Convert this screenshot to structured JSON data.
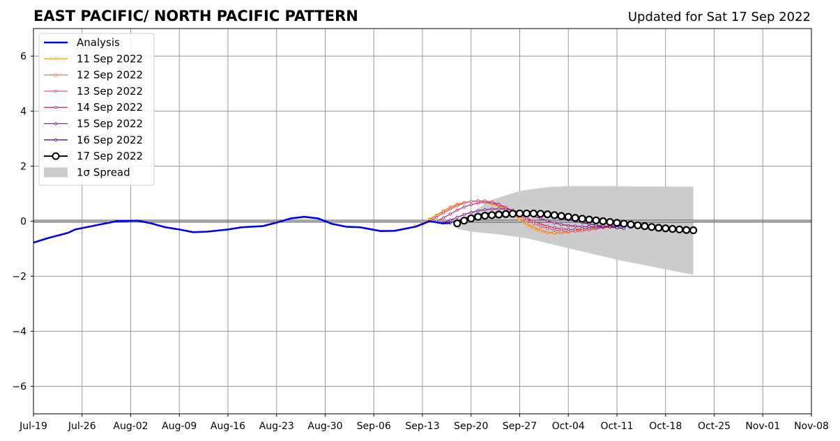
{
  "chart_data": {
    "type": "line",
    "title": "EAST PACIFIC/ NORTH PACIFIC PATTERN",
    "subtitle": "Updated for Sat 17 Sep 2022",
    "xlabel": "",
    "ylabel": "",
    "x_ticks": [
      "Jul-19",
      "Jul-26",
      "Aug-02",
      "Aug-09",
      "Aug-16",
      "Aug-23",
      "Aug-30",
      "Sep-06",
      "Sep-13",
      "Sep-20",
      "Sep-27",
      "Oct-04",
      "Oct-11",
      "Oct-18",
      "Oct-25",
      "Nov-01",
      "Nov-08"
    ],
    "xlim": [
      "2022-07-19",
      "2022-11-08"
    ],
    "ylim": [
      -7,
      7
    ],
    "y_ticks": [
      6,
      4,
      2,
      0,
      -2,
      -4,
      -6
    ],
    "y_tick_labels": [
      "6",
      "4",
      "2",
      "0",
      "−2",
      "−4",
      "−6"
    ],
    "grid": true,
    "legend_position": "top-left",
    "analysis": {
      "name": "Analysis",
      "color": "#0000e6",
      "points": [
        [
          "2022-07-19",
          -0.78
        ],
        [
          "2022-07-21",
          -0.62
        ],
        [
          "2022-07-24",
          -0.42
        ],
        [
          "2022-07-25",
          -0.3
        ],
        [
          "2022-07-28",
          -0.15
        ],
        [
          "2022-07-31",
          0.0
        ],
        [
          "2022-08-03",
          0.02
        ],
        [
          "2022-08-05",
          -0.08
        ],
        [
          "2022-08-07",
          -0.22
        ],
        [
          "2022-08-09",
          -0.3
        ],
        [
          "2022-08-11",
          -0.4
        ],
        [
          "2022-08-13",
          -0.38
        ],
        [
          "2022-08-16",
          -0.3
        ],
        [
          "2022-08-18",
          -0.22
        ],
        [
          "2022-08-21",
          -0.18
        ],
        [
          "2022-08-23",
          -0.05
        ],
        [
          "2022-08-25",
          0.1
        ],
        [
          "2022-08-27",
          0.16
        ],
        [
          "2022-08-29",
          0.1
        ],
        [
          "2022-08-31",
          -0.1
        ],
        [
          "2022-09-02",
          -0.2
        ],
        [
          "2022-09-04",
          -0.22
        ],
        [
          "2022-09-07",
          -0.36
        ],
        [
          "2022-09-09",
          -0.35
        ],
        [
          "2022-09-12",
          -0.2
        ],
        [
          "2022-09-14",
          0.0
        ],
        [
          "2022-09-16",
          -0.08
        ],
        [
          "2022-09-17",
          -0.06
        ]
      ]
    },
    "series": [
      {
        "name": "11 Sep 2022",
        "color": "#f5a623",
        "start": "2022-09-12",
        "values": [
          -0.18,
          -0.08,
          0.08,
          0.22,
          0.38,
          0.52,
          0.62,
          0.68,
          0.72,
          0.72,
          0.7,
          0.62,
          0.52,
          0.42,
          0.25,
          0.05,
          -0.15,
          -0.28,
          -0.38,
          -0.42,
          -0.44,
          -0.43,
          -0.4,
          -0.35,
          -0.3,
          -0.25,
          -0.2,
          -0.18,
          -0.16,
          -0.14,
          -0.12
        ]
      },
      {
        "name": "12 Sep 2022",
        "color": "#f07d33",
        "start": "2022-09-13",
        "values": [
          -0.1,
          0.05,
          0.2,
          0.36,
          0.5,
          0.6,
          0.68,
          0.72,
          0.74,
          0.72,
          0.66,
          0.56,
          0.44,
          0.28,
          0.1,
          -0.08,
          -0.22,
          -0.32,
          -0.4,
          -0.42,
          -0.42,
          -0.4,
          -0.36,
          -0.3,
          -0.25,
          -0.22,
          -0.2,
          -0.18,
          -0.16,
          -0.14
        ]
      },
      {
        "name": "13 Sep 2022",
        "color": "#dc5a6e",
        "start": "2022-09-14",
        "values": [
          0.0,
          0.14,
          0.3,
          0.44,
          0.56,
          0.66,
          0.72,
          0.74,
          0.74,
          0.7,
          0.62,
          0.5,
          0.36,
          0.2,
          0.05,
          -0.08,
          -0.18,
          -0.26,
          -0.32,
          -0.36,
          -0.38,
          -0.37,
          -0.35,
          -0.32,
          -0.28,
          -0.24,
          -0.22,
          -0.2,
          -0.18
        ]
      },
      {
        "name": "14 Sep 2022",
        "color": "#b4387a",
        "start": "2022-09-15",
        "values": [
          0.0,
          0.12,
          0.26,
          0.4,
          0.52,
          0.6,
          0.66,
          0.68,
          0.66,
          0.6,
          0.5,
          0.38,
          0.26,
          0.12,
          0.0,
          -0.1,
          -0.18,
          -0.24,
          -0.28,
          -0.3,
          -0.3,
          -0.28,
          -0.26,
          -0.24,
          -0.22,
          -0.2,
          -0.18,
          -0.16
        ]
      },
      {
        "name": "15 Sep 2022",
        "color": "#8a1f8c",
        "start": "2022-09-16",
        "values": [
          -0.06,
          0.04,
          0.14,
          0.24,
          0.32,
          0.38,
          0.42,
          0.44,
          0.45,
          0.44,
          0.4,
          0.34,
          0.26,
          0.18,
          0.1,
          0.02,
          -0.06,
          -0.12,
          -0.16,
          -0.18,
          -0.2,
          -0.2,
          -0.2,
          -0.2,
          -0.19,
          -0.18,
          -0.17
        ]
      },
      {
        "name": "16 Sep 2022",
        "color": "#4b0f7a",
        "start": "2022-09-17",
        "values": [
          -0.06,
          0.02,
          0.1,
          0.18,
          0.24,
          0.28,
          0.3,
          0.31,
          0.32,
          0.32,
          0.31,
          0.3,
          0.28,
          0.24,
          0.2,
          0.15,
          0.1,
          0.05,
          0.0,
          -0.05,
          -0.1,
          -0.14,
          -0.18,
          -0.21,
          -0.24,
          -0.26
        ]
      },
      {
        "name": "17 Sep 2022",
        "color": "#000000",
        "start": "2022-09-18",
        "values": [
          -0.08,
          0.02,
          0.1,
          0.16,
          0.2,
          0.22,
          0.24,
          0.26,
          0.27,
          0.28,
          0.28,
          0.28,
          0.27,
          0.25,
          0.22,
          0.19,
          0.16,
          0.12,
          0.09,
          0.06,
          0.03,
          0.0,
          -0.03,
          -0.06,
          -0.09,
          -0.12,
          -0.15,
          -0.18,
          -0.21,
          -0.24,
          -0.26,
          -0.28,
          -0.3,
          -0.32,
          -0.33
        ]
      }
    ],
    "spread": {
      "name": "1σ Spread",
      "color": "#cccccc",
      "upper": [
        [
          "2022-09-18",
          -0.05
        ],
        [
          "2022-09-20",
          0.3
        ],
        [
          "2022-09-23",
          0.78
        ],
        [
          "2022-09-27",
          1.1
        ],
        [
          "2022-10-01",
          1.24
        ],
        [
          "2022-10-04",
          1.27
        ],
        [
          "2022-10-11",
          1.27
        ],
        [
          "2022-10-18",
          1.26
        ],
        [
          "2022-10-22",
          1.26
        ]
      ],
      "lower": [
        [
          "2022-10-22",
          -1.95
        ],
        [
          "2022-10-18",
          -1.75
        ],
        [
          "2022-10-11",
          -1.4
        ],
        [
          "2022-10-04",
          -0.98
        ],
        [
          "2022-09-28",
          -0.62
        ],
        [
          "2022-09-24",
          -0.48
        ],
        [
          "2022-09-20",
          -0.38
        ],
        [
          "2022-09-18",
          -0.28
        ]
      ]
    }
  }
}
